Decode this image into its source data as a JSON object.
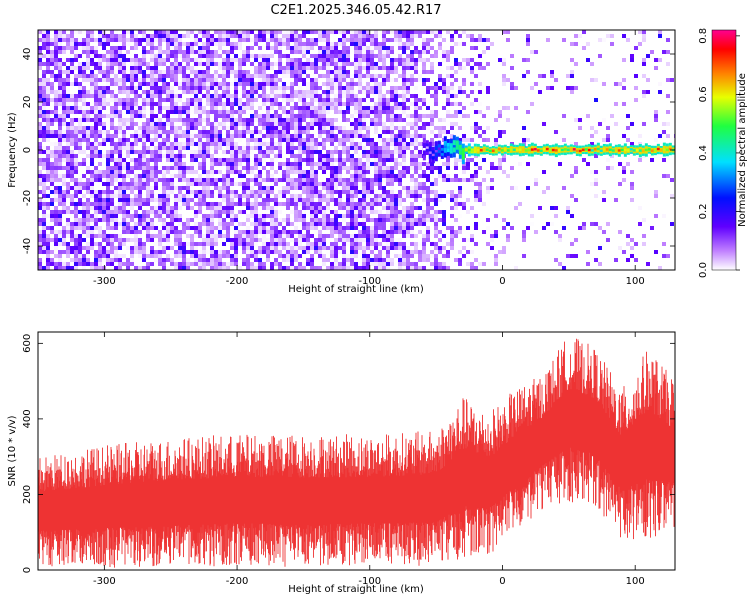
{
  "title": "C2E1.2025.346.05.42.R17",
  "chart_data": [
    {
      "type": "heatmap",
      "xlabel": "Height of straight line (km)",
      "ylabel": "Frequency (Hz)",
      "xlim": [
        -350,
        130
      ],
      "ylim": [
        -50,
        50
      ],
      "x_ticks": [
        -300,
        -200,
        -100,
        0,
        100
      ],
      "y_ticks": [
        -40,
        -20,
        0,
        20,
        40
      ],
      "colorbar": {
        "label": "Normalized spectral amplitude",
        "range": [
          0.0,
          0.82
        ],
        "ticks": [
          0.0,
          0.2,
          0.4,
          0.6,
          0.8
        ],
        "colormap": "rainbow: white -> violet -> blue -> cyan -> green -> yellow -> orange -> red -> magenta"
      },
      "features": {
        "noise_region_x": [
          -350,
          -40
        ],
        "noise_amplitude": [
          0.0,
          0.15
        ],
        "carrier_start_x": -60,
        "carrier_frequency_hz": 0,
        "carrier_amplitude": [
          0.4,
          0.8
        ]
      }
    },
    {
      "type": "line",
      "xlabel": "Height of straight line (km)",
      "ylabel": "SNR (10 * v/v)",
      "xlim": [
        -350,
        130
      ],
      "ylim": [
        0,
        630
      ],
      "x_ticks": [
        -300,
        -200,
        -100,
        0,
        100
      ],
      "y_ticks": [
        0,
        200,
        400,
        600
      ],
      "color": "#ee3333",
      "envelope": [
        {
          "x": -350,
          "low": 10,
          "high": 300
        },
        {
          "x": -300,
          "low": 5,
          "high": 330
        },
        {
          "x": -250,
          "low": 5,
          "high": 350
        },
        {
          "x": -200,
          "low": 10,
          "high": 360
        },
        {
          "x": -150,
          "low": 5,
          "high": 360
        },
        {
          "x": -100,
          "low": 10,
          "high": 360
        },
        {
          "x": -50,
          "low": 10,
          "high": 370
        },
        {
          "x": -30,
          "low": 30,
          "high": 460
        },
        {
          "x": -10,
          "low": 40,
          "high": 420
        },
        {
          "x": 10,
          "low": 100,
          "high": 480
        },
        {
          "x": 30,
          "low": 160,
          "high": 520
        },
        {
          "x": 50,
          "low": 180,
          "high": 625
        },
        {
          "x": 70,
          "low": 170,
          "high": 590
        },
        {
          "x": 90,
          "low": 80,
          "high": 480
        },
        {
          "x": 110,
          "low": 80,
          "high": 590
        },
        {
          "x": 130,
          "low": 100,
          "high": 500
        }
      ]
    }
  ]
}
